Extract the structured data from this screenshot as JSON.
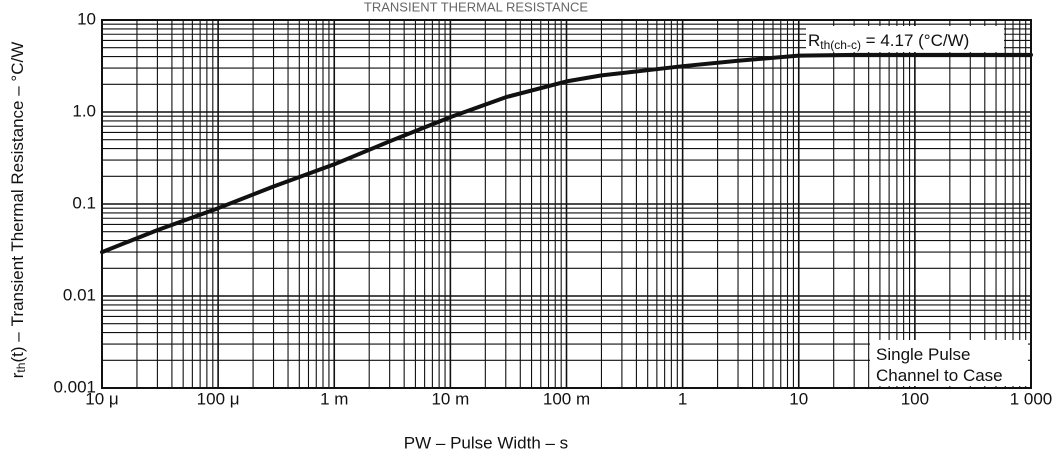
{
  "chart_data": {
    "type": "line",
    "title": "TRANSIENT THERMAL RESISTANCE",
    "xlabel": "PW – Pulse Width – s",
    "ylabel_main": "Transient Thermal Resistance – °C/W",
    "ylabel_symbol": "r",
    "ylabel_symbol_sub": "th",
    "ylabel_symbol_rest": "(t) –",
    "x_scale": "log",
    "y_scale": "log",
    "xlim": [
      1e-05,
      1000
    ],
    "ylim": [
      0.001,
      10
    ],
    "x_ticks": [
      1e-05,
      0.0001,
      0.001,
      0.01,
      0.1,
      1,
      10,
      100,
      1000
    ],
    "x_tick_labels": [
      "10 μ",
      "100 μ",
      "1 m",
      "10 m",
      "100 m",
      "1",
      "10",
      "100",
      "1 000"
    ],
    "y_ticks": [
      0.001,
      0.01,
      0.1,
      1,
      10
    ],
    "y_tick_labels": [
      "0.001",
      "0.01",
      "0.1",
      "1.0",
      "10"
    ],
    "grid": true,
    "annotation_rth": {
      "main": "R",
      "sub": "th(ch-c)",
      "rest": " = 4.17 (°C/W)"
    },
    "annotation_conditions": [
      "Single Pulse",
      "Channel to Case"
    ],
    "series": [
      {
        "x": [
          1e-05,
          3e-05,
          0.0001,
          0.0003,
          0.001,
          0.003,
          0.01,
          0.03,
          0.1,
          0.2,
          0.5,
          1,
          3,
          10,
          30,
          100,
          1000
        ],
        "y": [
          0.03,
          0.052,
          0.09,
          0.155,
          0.27,
          0.48,
          0.88,
          1.45,
          2.15,
          2.5,
          2.85,
          3.15,
          3.6,
          4.1,
          4.17,
          4.17,
          4.17
        ]
      }
    ]
  }
}
